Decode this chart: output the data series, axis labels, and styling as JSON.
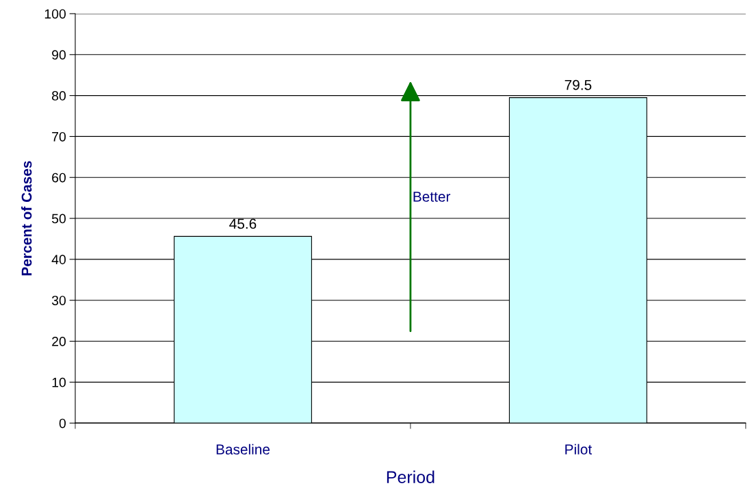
{
  "chart_data": {
    "type": "bar",
    "categories": [
      "Baseline",
      "Pilot"
    ],
    "values": [
      45.6,
      79.5
    ],
    "color": "#ccffff",
    "xlabel": "Period",
    "ylabel": "Percent of Cases",
    "ylim": [
      0,
      100
    ],
    "yticks": [
      0,
      10,
      20,
      30,
      40,
      50,
      60,
      70,
      80,
      90,
      100
    ],
    "grid": "y",
    "data_labels": true,
    "legend": false,
    "annotations": [
      "Better"
    ]
  }
}
